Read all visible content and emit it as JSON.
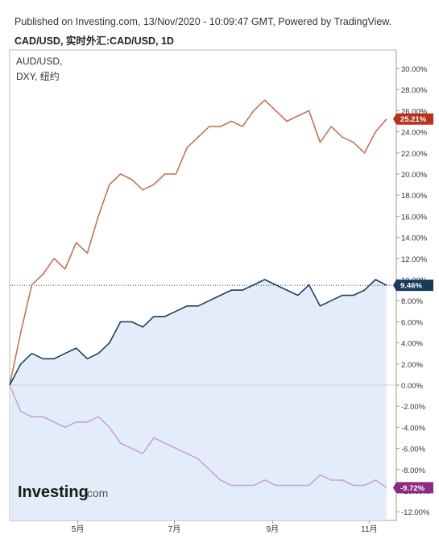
{
  "header": {
    "published": "Published on Investing.com, 13/Nov/2020 - 10:09:47 GMT, Powered by TradingView.",
    "title": "CAD/USD, 实时外汇:CAD/USD, 1D"
  },
  "brand": {
    "name": "Investing",
    "suffix": ".com"
  },
  "colors": {
    "aud": "#c0735a",
    "cad": "#1f3f5f",
    "dxy": "#c9a3cf",
    "fill": "#e3edfa",
    "aud_tag": "#b5341e",
    "cad_tag": "#1a3a5c",
    "dxy_tag": "#8b2a82"
  },
  "chart_data": {
    "type": "line",
    "x_ticks": [
      "5月",
      "7月",
      "9月",
      "11月"
    ],
    "y_ticks": [
      "30.00%",
      "28.00%",
      "26.00%",
      "24.00%",
      "22.00%",
      "20.00%",
      "18.00%",
      "16.00%",
      "14.00%",
      "12.00%",
      "10.00%",
      "8.00%",
      "6.00%",
      "4.00%",
      "2.00%",
      "0.00%",
      "-2.00%",
      "-4.00%",
      "-6.00%",
      "-8.00%",
      "-10.00%",
      "-12.00%"
    ],
    "ylim": [
      -12.5,
      31
    ],
    "y_scale_position": "right",
    "grid": false,
    "legend": [
      "AUD/USD,",
      "DXY, 纽约"
    ],
    "x": [
      "2020-03-19",
      "2020-03-26",
      "2020-04-02",
      "2020-04-09",
      "2020-04-16",
      "2020-04-23",
      "2020-04-30",
      "2020-05-07",
      "2020-05-14",
      "2020-05-21",
      "2020-05-28",
      "2020-06-04",
      "2020-06-11",
      "2020-06-18",
      "2020-06-25",
      "2020-07-02",
      "2020-07-09",
      "2020-07-16",
      "2020-07-23",
      "2020-07-30",
      "2020-08-06",
      "2020-08-13",
      "2020-08-20",
      "2020-08-27",
      "2020-09-03",
      "2020-09-10",
      "2020-09-17",
      "2020-09-24",
      "2020-10-01",
      "2020-10-08",
      "2020-10-15",
      "2020-10-22",
      "2020-10-29",
      "2020-11-05",
      "2020-11-12"
    ],
    "series": [
      {
        "name": "AUD/USD",
        "last_label": "25.21%",
        "values": [
          0.0,
          5.0,
          9.5,
          10.5,
          12.0,
          11.0,
          13.5,
          12.5,
          16.0,
          19.0,
          20.0,
          19.5,
          18.5,
          19.0,
          20.0,
          20.0,
          22.5,
          23.5,
          24.5,
          24.5,
          25.0,
          24.5,
          26.0,
          27.0,
          26.0,
          25.0,
          25.5,
          26.0,
          23.0,
          24.5,
          23.5,
          23.0,
          22.0,
          24.0,
          25.21
        ]
      },
      {
        "name": "CAD/USD",
        "last_label": "9.46%",
        "values": [
          0.0,
          2.0,
          3.0,
          2.5,
          2.5,
          3.0,
          3.5,
          2.5,
          3.0,
          4.0,
          6.0,
          6.0,
          5.5,
          6.5,
          6.5,
          7.0,
          7.5,
          7.5,
          8.0,
          8.5,
          9.0,
          9.0,
          9.5,
          10.0,
          9.5,
          9.0,
          8.5,
          9.5,
          7.5,
          8.0,
          8.5,
          8.5,
          9.0,
          10.0,
          9.46
        ]
      },
      {
        "name": "DXY, 纽约",
        "last_label": "-9.72%",
        "values": [
          0.0,
          -2.5,
          -3.0,
          -3.0,
          -3.5,
          -4.0,
          -3.5,
          -3.5,
          -3.0,
          -4.0,
          -5.5,
          -6.0,
          -6.5,
          -5.0,
          -5.5,
          -6.0,
          -6.5,
          -7.0,
          -8.0,
          -9.0,
          -9.5,
          -9.5,
          -9.5,
          -9.0,
          -9.5,
          -9.5,
          -9.5,
          -9.5,
          -8.5,
          -9.0,
          -9.0,
          -9.5,
          -9.5,
          -9.0,
          -9.72
        ]
      }
    ]
  }
}
